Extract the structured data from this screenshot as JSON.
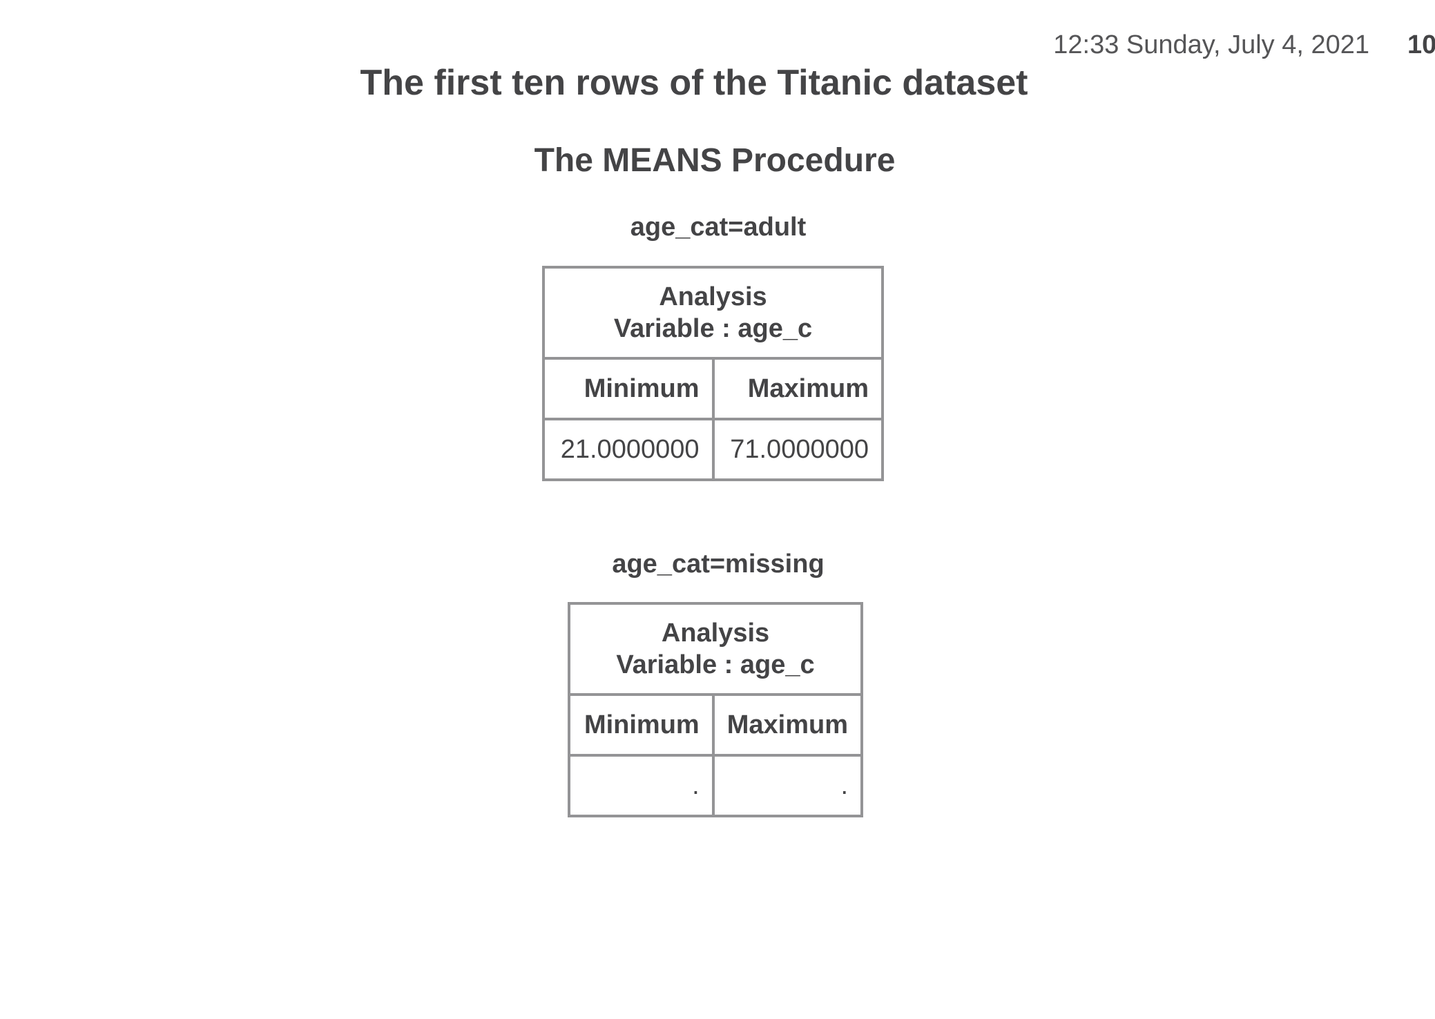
{
  "header": {
    "timestamp": "12:33 Sunday, July 4, 2021",
    "page_number": "10"
  },
  "titles": {
    "main": "The first ten rows of the Titanic dataset",
    "procedure": "The MEANS Procedure"
  },
  "groups": [
    {
      "byline": "age_cat=adult",
      "analysis_label": "Analysis",
      "variable_label": "Variable : age_c",
      "columns": [
        "Minimum",
        "Maximum"
      ],
      "values": [
        "21.0000000",
        "71.0000000"
      ]
    },
    {
      "byline": "age_cat=missing",
      "analysis_label": "Analysis",
      "variable_label": "Variable : age_c",
      "columns": [
        "Minimum",
        "Maximum"
      ],
      "values": [
        ".",
        "."
      ]
    }
  ]
}
